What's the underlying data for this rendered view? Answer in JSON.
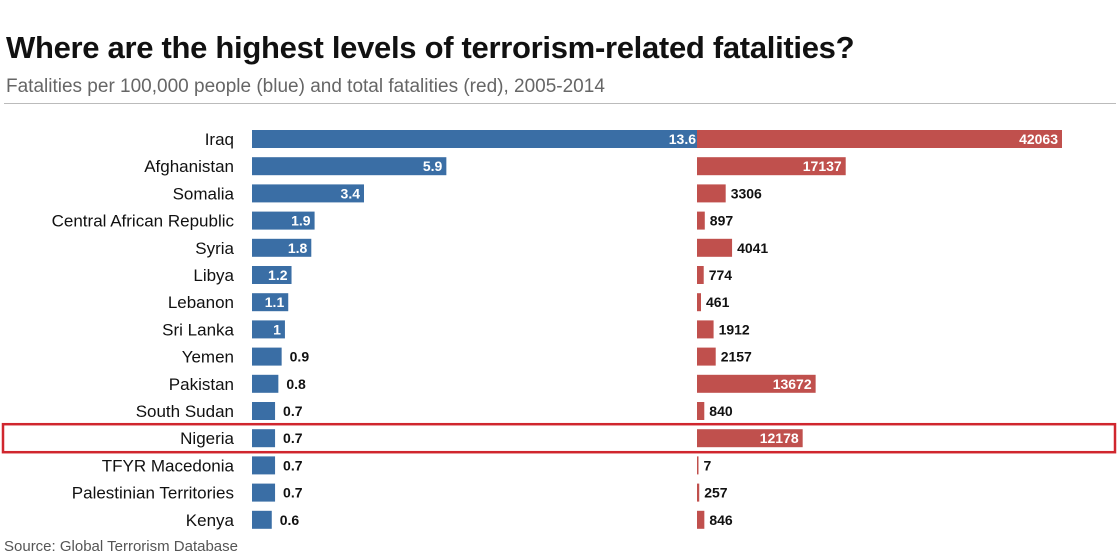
{
  "chart_data": {
    "type": "bar",
    "title": "Where are the highest levels of terrorism-related fatalities?",
    "subtitle": "Fatalities per 100,000 people (blue) and total fatalities (red), 2005-2014",
    "source": "Source: Global Terrorism Database",
    "categories": [
      "Iraq",
      "Afghanistan",
      "Somalia",
      "Central African Republic",
      "Syria",
      "Libya",
      "Lebanon",
      "Sri Lanka",
      "Yemen",
      "Pakistan",
      "South Sudan",
      "Nigeria",
      "TFYR Macedonia",
      "Palestinian Territories",
      "Kenya"
    ],
    "series": [
      {
        "values": [
          13.6,
          5.9,
          3.4,
          1.9,
          1.8,
          1.2,
          1.1,
          1,
          0.9,
          0.8,
          0.7,
          0.7,
          0.7,
          0.7,
          0.6
        ],
        "color": "#3a6ea5"
      },
      {
        "values": [
          42063,
          17137,
          3306,
          897,
          4041,
          774,
          461,
          1912,
          2157,
          13672,
          840,
          12178,
          7,
          257,
          846
        ],
        "color": "#c0504d"
      }
    ],
    "highlight": "Nigeria",
    "highlight_color": "#d0262e",
    "grid": false
  }
}
